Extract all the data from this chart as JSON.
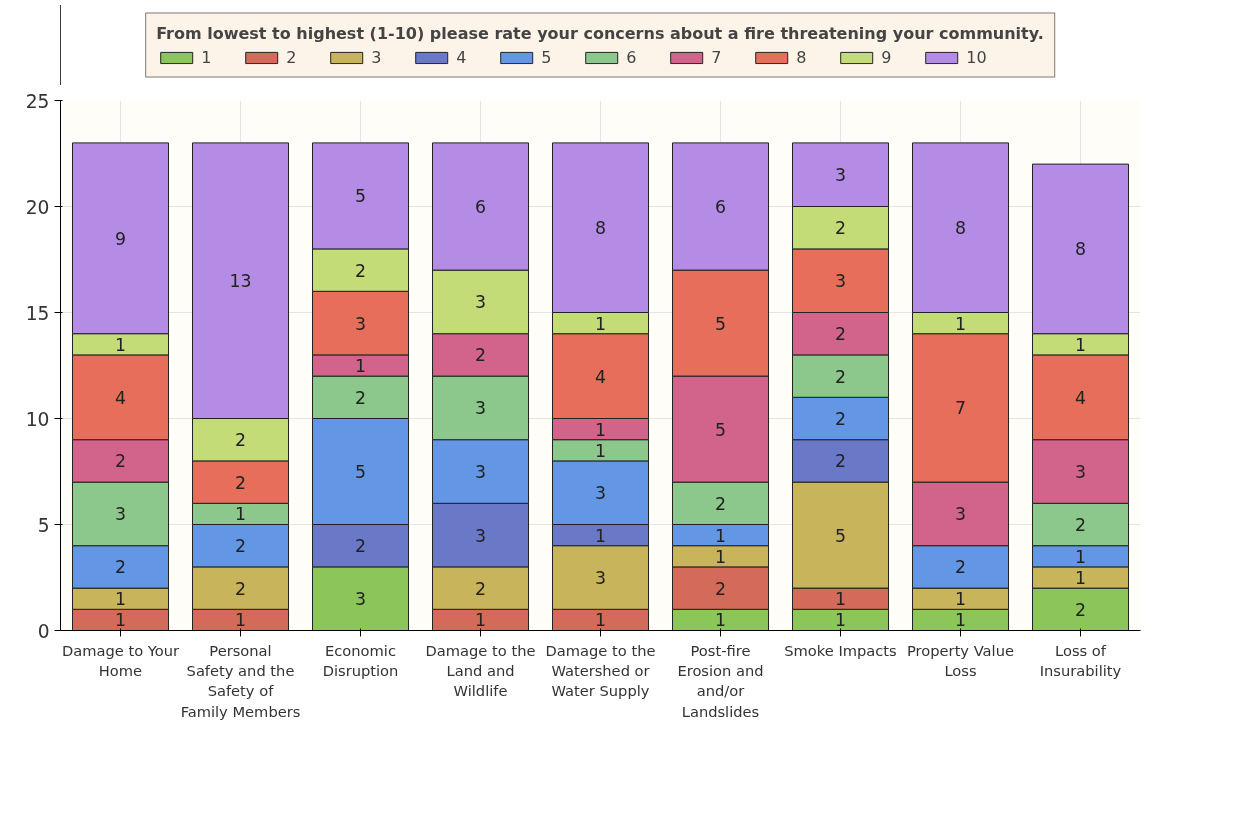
{
  "chart_data": {
    "type": "bar",
    "stacked": true,
    "legend_title": "From lowest to highest (1-10) please rate your concerns about a fire threatening your community.",
    "categories": [
      "Damage to Your Home",
      "Personal Safety and the Safety of Family Members",
      "Economic Disruption",
      "Damage to the Land and Wildlife",
      "Damage to the Watershed or Water Supply",
      "Post-fire Erosion and and/or Landslides",
      "Smoke Impacts",
      "Property Value Loss",
      "Loss of Insurability"
    ],
    "series": [
      {
        "name": "1",
        "color": "#8cc65a",
        "values": [
          null,
          null,
          3,
          null,
          null,
          1,
          1,
          1,
          2
        ]
      },
      {
        "name": "2",
        "color": "#d46a5a",
        "values": [
          1,
          1,
          null,
          1,
          1,
          2,
          1,
          null,
          null
        ]
      },
      {
        "name": "3",
        "color": "#c8b45a",
        "values": [
          1,
          2,
          null,
          2,
          3,
          1,
          5,
          1,
          1
        ]
      },
      {
        "name": "4",
        "color": "#6a78c8",
        "values": [
          null,
          null,
          2,
          3,
          1,
          null,
          2,
          null,
          null
        ]
      },
      {
        "name": "5",
        "color": "#6496e6",
        "values": [
          2,
          2,
          5,
          3,
          3,
          1,
          2,
          2,
          1
        ]
      },
      {
        "name": "6",
        "color": "#8cc88c",
        "values": [
          3,
          1,
          2,
          3,
          1,
          2,
          2,
          null,
          2
        ]
      },
      {
        "name": "7",
        "color": "#d2648c",
        "values": [
          2,
          null,
          1,
          2,
          1,
          5,
          2,
          3,
          3
        ]
      },
      {
        "name": "8",
        "color": "#e66e5a",
        "values": [
          4,
          2,
          3,
          null,
          4,
          5,
          3,
          7,
          4
        ]
      },
      {
        "name": "9",
        "color": "#c3dc78",
        "values": [
          1,
          2,
          2,
          3,
          1,
          null,
          2,
          1,
          1
        ]
      },
      {
        "name": "10",
        "color": "#b48ce6",
        "values": [
          9,
          13,
          5,
          6,
          8,
          6,
          3,
          8,
          8
        ]
      }
    ],
    "ylim": [
      0,
      25
    ],
    "yticks": [
      0,
      5,
      10,
      15,
      20,
      25
    ],
    "grid": true,
    "legend": "top",
    "data_labels": true
  }
}
